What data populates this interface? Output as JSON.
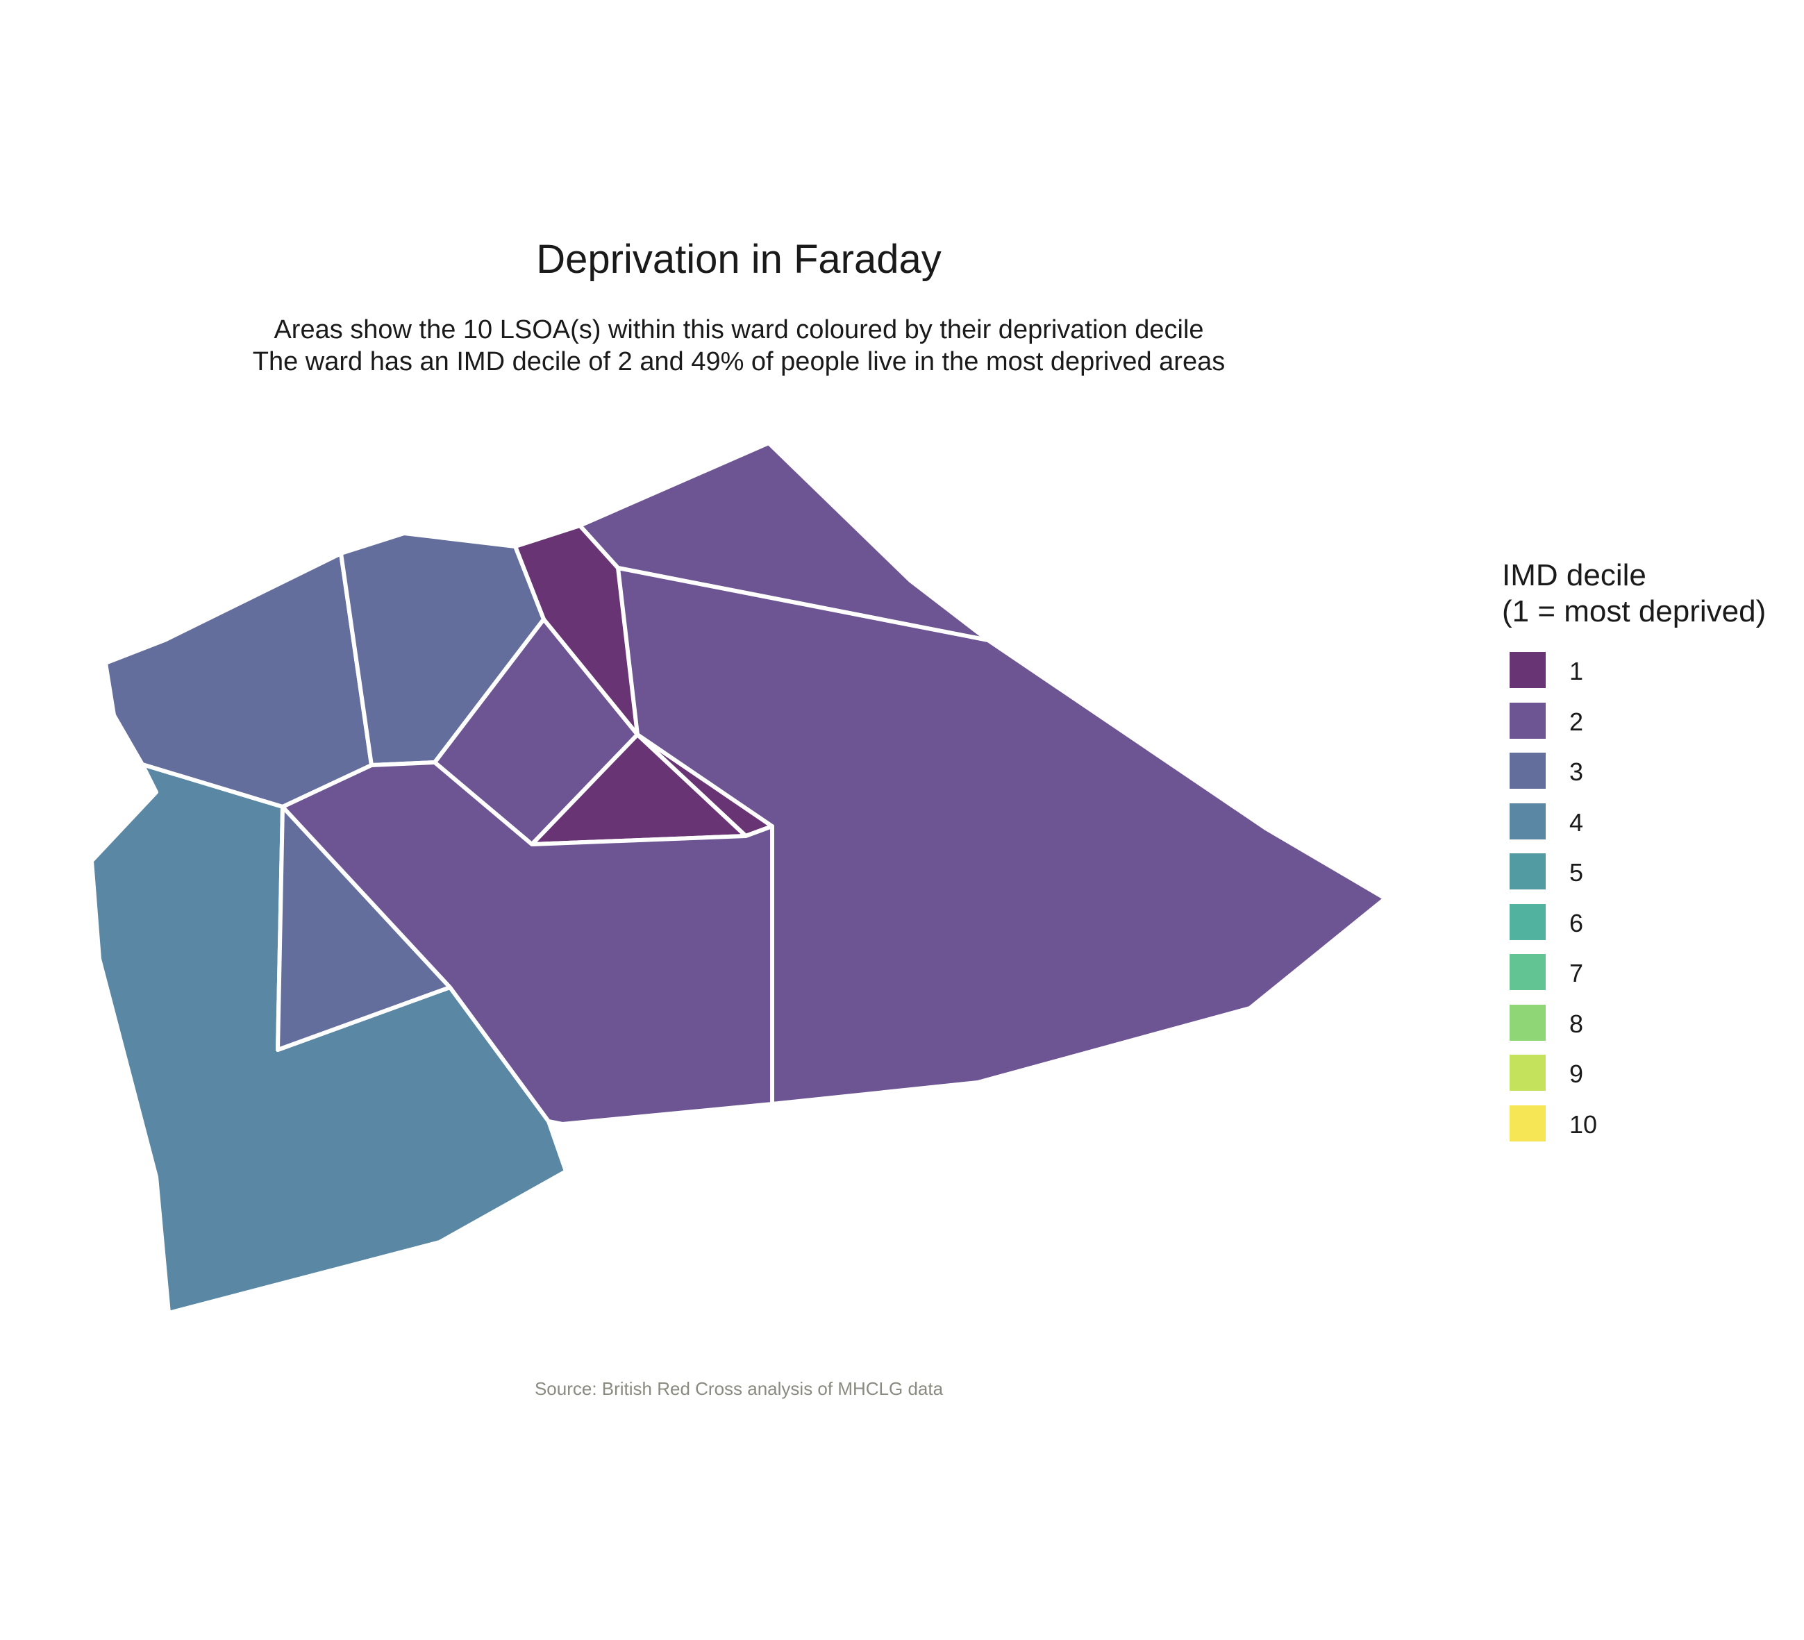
{
  "title": "Deprivation in Faraday",
  "subtitle_lines": [
    "Areas show the 10 LSOA(s) within this ward coloured by their deprivation decile",
    "The ward has an IMD decile of 2 and 49% of people live in the most deprived areas"
  ],
  "caption": "Source: British Red Cross analysis of MHCLG data",
  "legend": {
    "title_line1": "IMD decile",
    "title_line2": "(1 = most deprived)",
    "items": [
      {
        "label": "1",
        "color": "#683474"
      },
      {
        "label": "2",
        "color": "#6d5493"
      },
      {
        "label": "3",
        "color": "#636e9c"
      },
      {
        "label": "4",
        "color": "#5987a4"
      },
      {
        "label": "5",
        "color": "#529ba3"
      },
      {
        "label": "6",
        "color": "#50b29f"
      },
      {
        "label": "7",
        "color": "#63c493"
      },
      {
        "label": "8",
        "color": "#8fd677"
      },
      {
        "label": "9",
        "color": "#c4e25c"
      },
      {
        "label": "10",
        "color": "#f6e656"
      }
    ]
  },
  "map": {
    "boundary_color": "#ffffff",
    "areas": [
      {
        "decile": 2,
        "color": "#6d5493"
      },
      {
        "decile": 2,
        "color": "#6d5493"
      },
      {
        "decile": 1,
        "color": "#683474"
      },
      {
        "decile": 3,
        "color": "#636e9c"
      },
      {
        "decile": 3,
        "color": "#636e9c"
      },
      {
        "decile": 2,
        "color": "#6d5493"
      },
      {
        "decile": 1,
        "color": "#683474"
      },
      {
        "decile": 4,
        "color": "#5987a4"
      },
      {
        "decile": 3,
        "color": "#636e9c"
      },
      {
        "decile": 2,
        "color": "#6d5493"
      }
    ]
  }
}
